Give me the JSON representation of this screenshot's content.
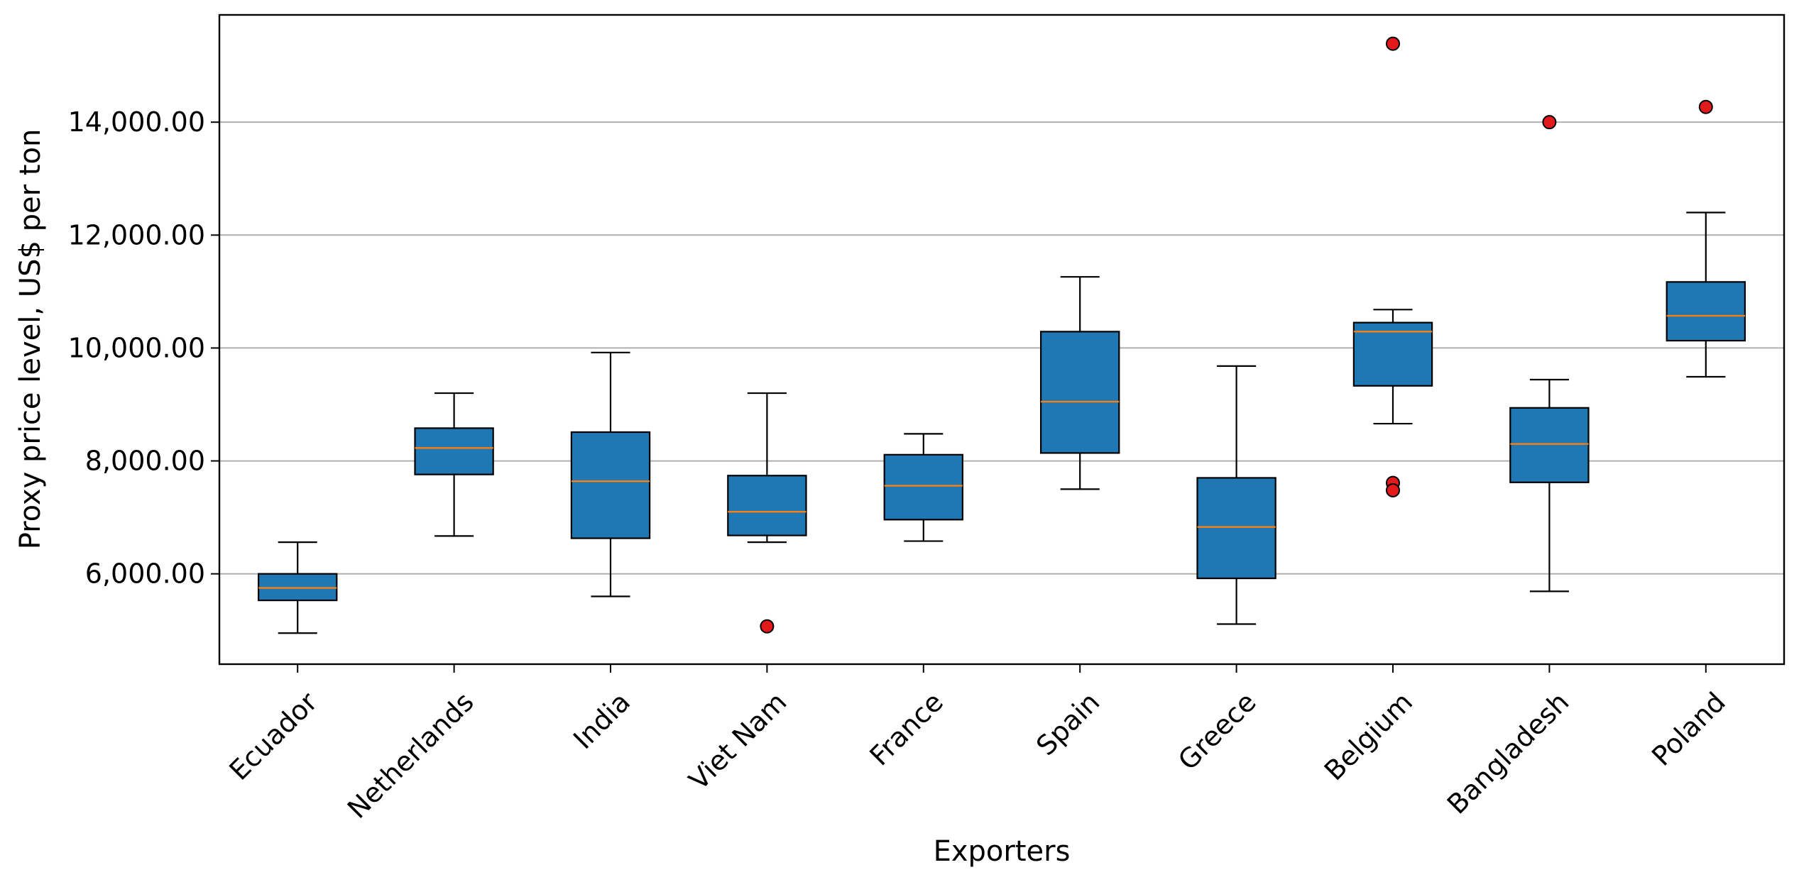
{
  "chart_data": {
    "type": "box",
    "title": "",
    "xlabel": "Exporters",
    "ylabel": "Proxy price level, US$ per ton",
    "ylim": [
      4400,
      15900
    ],
    "yticks": [
      6000,
      8000,
      10000,
      12000,
      14000
    ],
    "ytick_labels": [
      "6,000.00",
      "8,000.00",
      "10,000.00",
      "12,000.00",
      "14,000.00"
    ],
    "grid": "y",
    "box_color": "#1f77b4",
    "median_color": "#ff7f0e",
    "outlier_color": "#e31a1c",
    "categories": [
      "Ecuador",
      "Netherlands",
      "India",
      "Viet Nam",
      "France",
      "Spain",
      "Greece",
      "Belgium",
      "Bangladesh",
      "Poland"
    ],
    "boxes": [
      {
        "whisker_low": 4950,
        "q1": 5530,
        "median": 5750,
        "q3": 6000,
        "whisker_high": 6560,
        "outliers": []
      },
      {
        "whisker_low": 6670,
        "q1": 7760,
        "median": 8230,
        "q3": 8580,
        "whisker_high": 9200,
        "outliers": []
      },
      {
        "whisker_low": 5600,
        "q1": 6630,
        "median": 7640,
        "q3": 8510,
        "whisker_high": 9920,
        "outliers": []
      },
      {
        "whisker_low": 6560,
        "q1": 6680,
        "median": 7100,
        "q3": 7740,
        "whisker_high": 9200,
        "outliers": [
          5070
        ]
      },
      {
        "whisker_low": 6580,
        "q1": 6960,
        "median": 7560,
        "q3": 8110,
        "whisker_high": 8480,
        "outliers": []
      },
      {
        "whisker_low": 7500,
        "q1": 8140,
        "median": 9050,
        "q3": 10290,
        "whisker_high": 11260,
        "outliers": []
      },
      {
        "whisker_low": 5110,
        "q1": 5920,
        "median": 6830,
        "q3": 7700,
        "whisker_high": 9680,
        "outliers": []
      },
      {
        "whisker_low": 8660,
        "q1": 9330,
        "median": 10290,
        "q3": 10450,
        "whisker_high": 10680,
        "outliers": [
          15390,
          7610,
          7480
        ]
      },
      {
        "whisker_low": 5690,
        "q1": 7620,
        "median": 8300,
        "q3": 8940,
        "whisker_high": 9440,
        "outliers": [
          14000
        ]
      },
      {
        "whisker_low": 9490,
        "q1": 10130,
        "median": 10570,
        "q3": 11170,
        "whisker_high": 12400,
        "outliers": [
          14270
        ]
      }
    ]
  }
}
